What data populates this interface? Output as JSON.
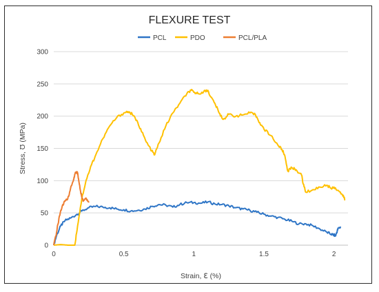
{
  "chart_data": {
    "type": "line",
    "title": "FLEXURE TEST",
    "xlabel": "Strain, ℇ (%)",
    "ylabel": "Stress, Ʊ (MPa)",
    "xlim": [
      0,
      2.1
    ],
    "ylim": [
      0,
      300
    ],
    "x_ticks": [
      "0",
      "0.5",
      "1",
      "1.5",
      "2"
    ],
    "y_ticks": [
      "0",
      "50",
      "100",
      "150",
      "200",
      "250",
      "300"
    ],
    "grid": "horizontal",
    "legend": "top",
    "series": [
      {
        "name": "PCL",
        "color": "#2e75c6",
        "points": [
          [
            0,
            0
          ],
          [
            0.02,
            15
          ],
          [
            0.05,
            30
          ],
          [
            0.08,
            38
          ],
          [
            0.12,
            42
          ],
          [
            0.16,
            47
          ],
          [
            0.2,
            53
          ],
          [
            0.25,
            58
          ],
          [
            0.3,
            60
          ],
          [
            0.35,
            59
          ],
          [
            0.4,
            58
          ],
          [
            0.45,
            56
          ],
          [
            0.5,
            55
          ],
          [
            0.55,
            53
          ],
          [
            0.6,
            54
          ],
          [
            0.65,
            56
          ],
          [
            0.7,
            60
          ],
          [
            0.75,
            63
          ],
          [
            0.8,
            62
          ],
          [
            0.85,
            59
          ],
          [
            0.9,
            63
          ],
          [
            0.95,
            66
          ],
          [
            1.0,
            66
          ],
          [
            1.05,
            65
          ],
          [
            1.1,
            67
          ],
          [
            1.15,
            64
          ],
          [
            1.2,
            63
          ],
          [
            1.25,
            61
          ],
          [
            1.3,
            58
          ],
          [
            1.35,
            56
          ],
          [
            1.4,
            54
          ],
          [
            1.45,
            51
          ],
          [
            1.5,
            48
          ],
          [
            1.55,
            45
          ],
          [
            1.6,
            43
          ],
          [
            1.65,
            40
          ],
          [
            1.7,
            37
          ],
          [
            1.75,
            33
          ],
          [
            1.8,
            33
          ],
          [
            1.85,
            30
          ],
          [
            1.9,
            25
          ],
          [
            1.95,
            20
          ],
          [
            1.98,
            17
          ],
          [
            2.0,
            16
          ],
          [
            2.01,
            14
          ],
          [
            2.02,
            20
          ],
          [
            2.03,
            26
          ],
          [
            2.05,
            28
          ]
        ]
      },
      {
        "name": "PDO",
        "color": "#ffc000",
        "points": [
          [
            0,
            0
          ],
          [
            0.05,
            1
          ],
          [
            0.1,
            0
          ],
          [
            0.15,
            0
          ],
          [
            0.17,
            30
          ],
          [
            0.2,
            72
          ],
          [
            0.23,
            100
          ],
          [
            0.27,
            125
          ],
          [
            0.3,
            140
          ],
          [
            0.35,
            165
          ],
          [
            0.4,
            185
          ],
          [
            0.45,
            198
          ],
          [
            0.5,
            205
          ],
          [
            0.53,
            207
          ],
          [
            0.56,
            203
          ],
          [
            0.6,
            190
          ],
          [
            0.63,
            175
          ],
          [
            0.66,
            160
          ],
          [
            0.7,
            146
          ],
          [
            0.72,
            140
          ],
          [
            0.75,
            158
          ],
          [
            0.8,
            185
          ],
          [
            0.85,
            205
          ],
          [
            0.9,
            220
          ],
          [
            0.95,
            235
          ],
          [
            0.98,
            240
          ],
          [
            1.0,
            237
          ],
          [
            1.03,
            235
          ],
          [
            1.07,
            238
          ],
          [
            1.1,
            240
          ],
          [
            1.12,
            230
          ],
          [
            1.15,
            220
          ],
          [
            1.18,
            205
          ],
          [
            1.21,
            195
          ],
          [
            1.25,
            203
          ],
          [
            1.3,
            200
          ],
          [
            1.35,
            202
          ],
          [
            1.4,
            205
          ],
          [
            1.44,
            202
          ],
          [
            1.47,
            190
          ],
          [
            1.5,
            180
          ],
          [
            1.55,
            170
          ],
          [
            1.6,
            155
          ],
          [
            1.63,
            148
          ],
          [
            1.65,
            138
          ],
          [
            1.67,
            115
          ],
          [
            1.7,
            120
          ],
          [
            1.73,
            117
          ],
          [
            1.77,
            108
          ],
          [
            1.78,
            95
          ],
          [
            1.8,
            82
          ],
          [
            1.85,
            86
          ],
          [
            1.9,
            90
          ],
          [
            1.95,
            93
          ],
          [
            1.98,
            88
          ],
          [
            2.0,
            90
          ],
          [
            2.03,
            85
          ],
          [
            2.06,
            78
          ],
          [
            2.08,
            70
          ]
        ]
      },
      {
        "name": "PCL/PLA",
        "color": "#ed7d31",
        "points": [
          [
            0,
            0
          ],
          [
            0.02,
            20
          ],
          [
            0.04,
            45
          ],
          [
            0.06,
            60
          ],
          [
            0.08,
            68
          ],
          [
            0.1,
            72
          ],
          [
            0.12,
            88
          ],
          [
            0.14,
            100
          ],
          [
            0.15,
            110
          ],
          [
            0.16,
            113
          ],
          [
            0.17,
            112
          ],
          [
            0.18,
            98
          ],
          [
            0.19,
            85
          ],
          [
            0.2,
            75
          ],
          [
            0.21,
            68
          ],
          [
            0.23,
            73
          ],
          [
            0.24,
            70
          ],
          [
            0.25,
            66
          ]
        ]
      }
    ]
  }
}
